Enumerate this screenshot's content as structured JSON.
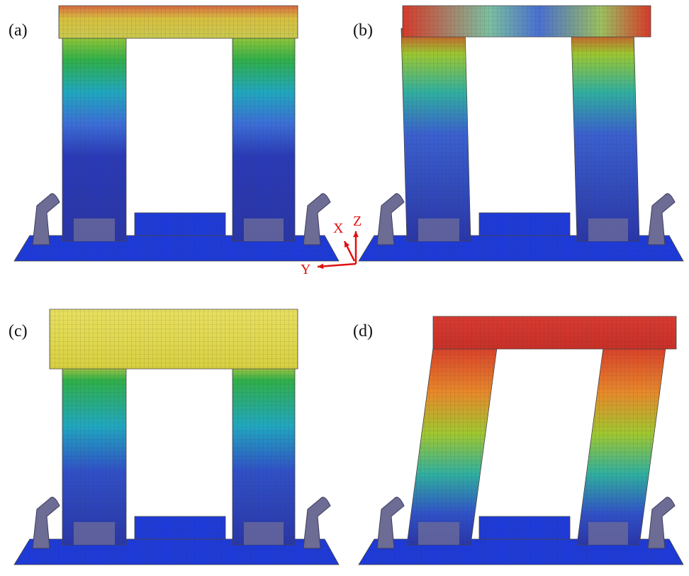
{
  "panels": [
    {
      "label": "(a)"
    },
    {
      "label": "(b)"
    },
    {
      "label": "(c)"
    },
    {
      "label": "(d)"
    }
  ],
  "axes": {
    "x": "X",
    "y": "Y",
    "z": "Z"
  }
}
